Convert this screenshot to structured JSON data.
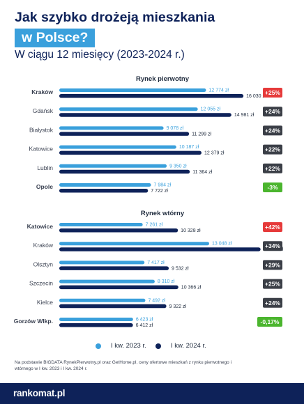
{
  "header": {
    "title_line1": "Jak szybko drożeją mieszkania",
    "title_line2": "w Polsce?",
    "subtitle": "W ciągu 12 miesięcy (2023-2024 r.)"
  },
  "colors": {
    "series_2023": "#3aa0dc",
    "series_2024": "#0e2259",
    "increase_badge": "#e63a3a",
    "increase_badge_neutral": "#3b3f47",
    "decrease_badge": "#4bb52e",
    "highlight_red": "#e63a3a",
    "highlight_green": "#4bb52e"
  },
  "legend": {
    "label_2023": "I kw. 2023 r.",
    "label_2024": "I kw. 2024 r."
  },
  "footnote": "Na podstawie BIGDATA RynekPierwotny.pl oraz GetHome.pl, ceny ofertowe mieszkań z rynku pierwotnego i wtórnego w I kw. 2023 i I kw. 2024 r.",
  "brand": "rankomat.pl",
  "chart_data": [
    {
      "type": "bar",
      "title": "Rynek pierwotny",
      "categories": [
        "Kraków",
        "Gdańsk",
        "Białystok",
        "Katowice",
        "Lublin",
        "Opole"
      ],
      "series": [
        {
          "name": "I kw. 2023 r.",
          "values": [
            12774,
            12055,
            9078,
            10187,
            9350,
            7984
          ]
        },
        {
          "name": "I kw. 2024 r.",
          "values": [
            16030,
            14981,
            11299,
            12379,
            11364,
            7722
          ]
        }
      ],
      "value_labels_2023": [
        "12 774 zł",
        "12 055 zł",
        "9 078 zł",
        "10 187 zł",
        "9 350 zł",
        "7 984 zł"
      ],
      "value_labels_2024": [
        "16 030 zł",
        "14 981 zł",
        "11 299 zł",
        "12 379 zł",
        "11 364 zł",
        "7 722 zł"
      ],
      "change_labels": [
        "+25%",
        "+24%",
        "+24%",
        "+22%",
        "+22%",
        "-3%"
      ],
      "highlight": [
        "max",
        "none",
        "none",
        "none",
        "none",
        "min"
      ],
      "orientation": "horizontal",
      "xlim": [
        0,
        17600
      ],
      "grid": false
    },
    {
      "type": "bar",
      "title": "Rynek wtórny",
      "categories": [
        "Katowice",
        "Kraków",
        "Olsztyn",
        "Szczecin",
        "Kielce",
        "Gorzów Wlkp."
      ],
      "series": [
        {
          "name": "I kw. 2023 r.",
          "values": [
            7261,
            13048,
            7417,
            8310,
            7492,
            6423
          ]
        },
        {
          "name": "I kw. 2024 r.",
          "values": [
            10328,
            17521,
            9532,
            10366,
            9322,
            6412
          ]
        }
      ],
      "value_labels_2023": [
        "7 261 zł",
        "13 048 zł",
        "7 417 zł",
        "8 310 zł",
        "7 492 zł",
        "6 423 zł"
      ],
      "value_labels_2024": [
        "10 328 zł",
        "17 521 zł",
        "9 532 zł",
        "10 366 zł",
        "9 322 zł",
        "6 412 zł"
      ],
      "change_labels": [
        "+42%",
        "+34%",
        "+29%",
        "+25%",
        "+24%",
        "-0,17%"
      ],
      "highlight": [
        "max",
        "none",
        "none",
        "none",
        "none",
        "min"
      ],
      "orientation": "horizontal",
      "xlim": [
        0,
        17600
      ],
      "grid": false
    }
  ]
}
